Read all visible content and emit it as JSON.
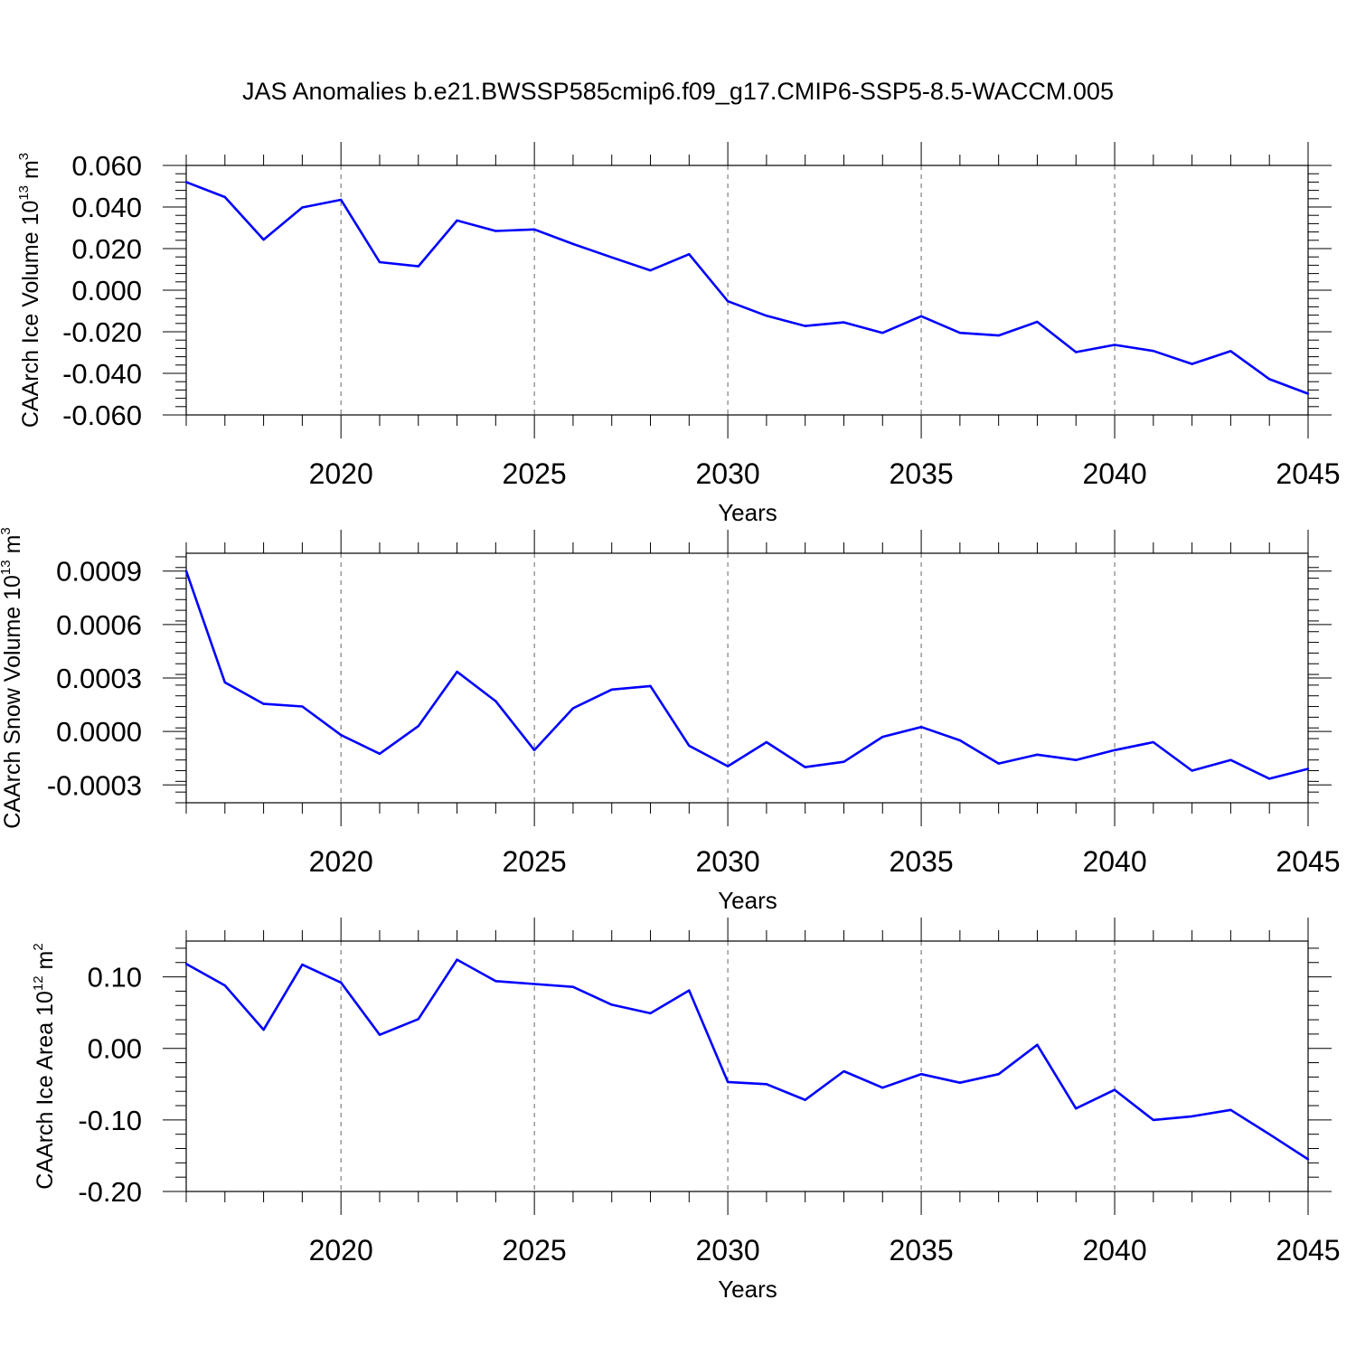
{
  "title": "JAS Anomalies b.e21.BWSSP585cmip6.f09_g17.CMIP6-SSP5-8.5-WACCM.005",
  "colors": {
    "line": "#0000ff",
    "axes": "#000000",
    "grid": "#666666"
  },
  "chart_data": [
    {
      "type": "line",
      "ylabel": {
        "text": "CAArch Ice Volume 10",
        "sup": "13",
        "unit": " m",
        "unit_sup": "3"
      },
      "xlabel": "Years",
      "xlim": [
        2016,
        2045
      ],
      "ylim": [
        -0.06,
        0.06
      ],
      "xticks": [
        2020,
        2025,
        2030,
        2035,
        2040,
        2045
      ],
      "yticks": [
        -0.06,
        -0.04,
        -0.02,
        0.0,
        0.02,
        0.04,
        0.06
      ],
      "ytick_labels": [
        "-0.060",
        "-0.040",
        "-0.020",
        "0.000",
        "0.020",
        "0.040",
        "0.060"
      ],
      "grid_x": true,
      "x": [
        2016,
        2017,
        2018,
        2019,
        2020,
        2021,
        2022,
        2023,
        2024,
        2025,
        2026,
        2027,
        2028,
        2029,
        2030,
        2031,
        2032,
        2033,
        2034,
        2035,
        2036,
        2037,
        2038,
        2039,
        2040,
        2041,
        2042,
        2043,
        2044,
        2045
      ],
      "values": [
        0.052,
        0.0448,
        0.0243,
        0.0398,
        0.0435,
        0.0135,
        0.0115,
        0.0335,
        0.0285,
        0.0292,
        0.0222,
        0.0158,
        0.0095,
        0.0173,
        -0.0053,
        -0.0123,
        -0.0172,
        -0.0155,
        -0.0205,
        -0.0125,
        -0.0205,
        -0.0218,
        -0.0152,
        -0.0298,
        -0.0263,
        -0.0292,
        -0.0355,
        -0.0293,
        -0.0428,
        -0.0498
      ]
    },
    {
      "type": "line",
      "ylabel": {
        "text": "CAArch Snow Volume 10",
        "sup": "13",
        "unit": " m",
        "unit_sup": "3"
      },
      "xlabel": "Years",
      "xlim": [
        2016,
        2045
      ],
      "ylim": [
        -0.0004,
        0.001
      ],
      "xticks": [
        2020,
        2025,
        2030,
        2035,
        2040,
        2045
      ],
      "yticks": [
        -0.0003,
        0.0,
        0.0003,
        0.0006,
        0.0009
      ],
      "ytick_labels": [
        "-0.0003",
        "0.0000",
        "0.0003",
        "0.0006",
        "0.0009"
      ],
      "grid_x": true,
      "x": [
        2016,
        2017,
        2018,
        2019,
        2020,
        2021,
        2022,
        2023,
        2024,
        2025,
        2026,
        2027,
        2028,
        2029,
        2030,
        2031,
        2032,
        2033,
        2034,
        2035,
        2036,
        2037,
        2038,
        2039,
        2040,
        2041,
        2042,
        2043,
        2044,
        2045
      ],
      "values": [
        0.0009,
        0.000275,
        0.000155,
        0.00014,
        -2e-05,
        -0.000125,
        3e-05,
        0.000335,
        0.00017,
        -0.000105,
        0.00013,
        0.000235,
        0.000255,
        -8e-05,
        -0.000195,
        -6e-05,
        -0.0002,
        -0.00017,
        -3e-05,
        2.5e-05,
        -5e-05,
        -0.00018,
        -0.00013,
        -0.00016,
        -0.000105,
        -6e-05,
        -0.00022,
        -0.00016,
        -0.000265,
        -0.00021
      ]
    },
    {
      "type": "line",
      "ylabel": {
        "text": "CAArch Ice Area 10",
        "sup": "12",
        "unit": " m",
        "unit_sup": "2"
      },
      "xlabel": "Years",
      "xlim": [
        2016,
        2045
      ],
      "ylim": [
        -0.2,
        0.15
      ],
      "xticks": [
        2020,
        2025,
        2030,
        2035,
        2040,
        2045
      ],
      "yticks": [
        -0.2,
        -0.1,
        0.0,
        0.1
      ],
      "ytick_labels": [
        "-0.20",
        "-0.10",
        "0.00",
        "0.10"
      ],
      "grid_x": true,
      "x": [
        2016,
        2017,
        2018,
        2019,
        2020,
        2021,
        2022,
        2023,
        2024,
        2025,
        2026,
        2027,
        2028,
        2029,
        2030,
        2031,
        2032,
        2033,
        2034,
        2035,
        2036,
        2037,
        2038,
        2039,
        2040,
        2041,
        2042,
        2043,
        2044,
        2045
      ],
      "values": [
        0.118,
        0.088,
        0.026,
        0.117,
        0.092,
        0.019,
        0.041,
        0.124,
        0.094,
        0.09,
        0.086,
        0.061,
        0.049,
        0.081,
        -0.047,
        -0.05,
        -0.072,
        -0.032,
        -0.055,
        -0.036,
        -0.048,
        -0.036,
        0.005,
        -0.084,
        -0.058,
        -0.1,
        -0.095,
        -0.086,
        -0.12,
        -0.155
      ]
    }
  ]
}
